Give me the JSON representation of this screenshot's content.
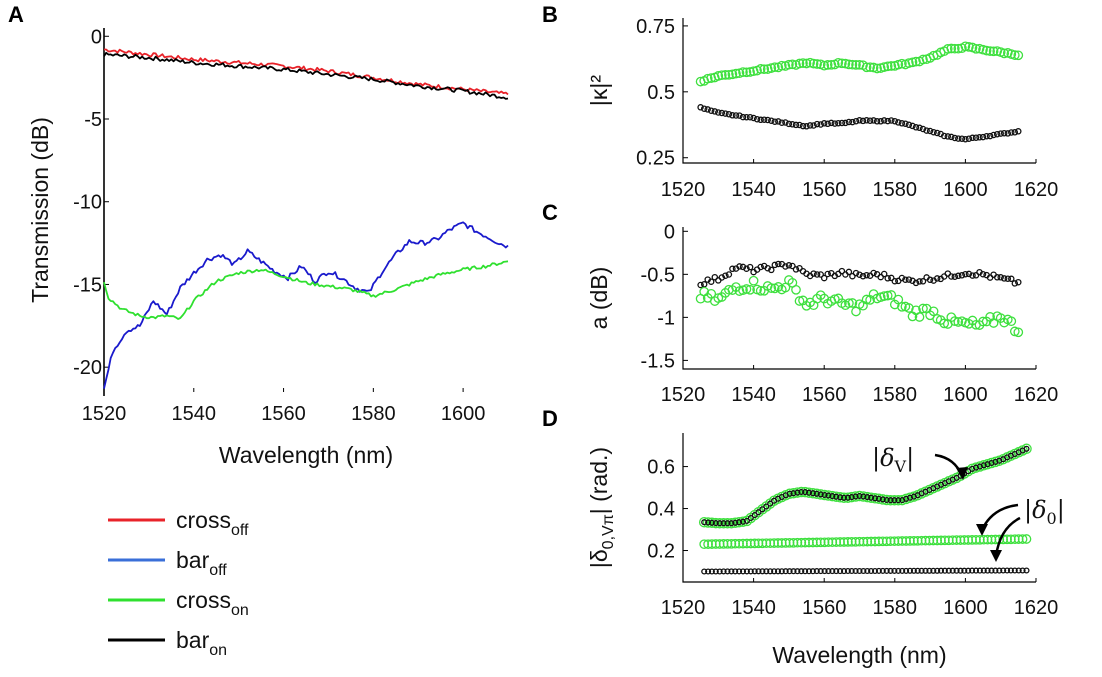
{
  "panels": {
    "A": "A",
    "B": "B",
    "C": "C",
    "D": "D"
  },
  "legend": {
    "items": [
      {
        "name": "cross",
        "sub": "off",
        "color": "#e8232a"
      },
      {
        "name": "bar",
        "sub": "off",
        "color": "#3a6fd8"
      },
      {
        "name": "cross",
        "sub": "on",
        "color": "#2fe02f"
      },
      {
        "name": "bar",
        "sub": "on",
        "color": "#000000"
      }
    ]
  },
  "annotations": {
    "delta_v": {
      "sym": "δ",
      "sub": "V"
    },
    "delta_0": {
      "sym": "δ",
      "sub": "0"
    }
  },
  "chart_data": [
    {
      "id": "A",
      "type": "line",
      "xlabel": "Wavelength (nm)",
      "ylabel": "Transmission (dB)",
      "xlim": [
        1520,
        1610
      ],
      "ylim": [
        -21.5,
        0.5
      ],
      "xticks": [
        1520,
        1540,
        1560,
        1580,
        1600
      ],
      "yticks": [
        0,
        -5,
        -10,
        -15,
        -20
      ],
      "series": [
        {
          "name": "cross_off",
          "color": "#e8232a",
          "noise": 0.12,
          "x": [
            1520,
            1530,
            1540,
            1550,
            1560,
            1570,
            1580,
            1590,
            1600,
            1610
          ],
          "y": [
            -0.8,
            -1.1,
            -1.4,
            -1.6,
            -1.8,
            -2.1,
            -2.5,
            -2.9,
            -3.2,
            -3.5
          ]
        },
        {
          "name": "bar_on",
          "color": "#000000",
          "noise": 0.12,
          "x": [
            1520,
            1530,
            1540,
            1550,
            1560,
            1570,
            1580,
            1590,
            1600,
            1610
          ],
          "y": [
            -1.1,
            -1.3,
            -1.6,
            -1.8,
            -2.0,
            -2.3,
            -2.6,
            -3.0,
            -3.3,
            -3.7
          ]
        },
        {
          "name": "bar_off",
          "color": "#1a1acc",
          "noise": 0.15,
          "x": [
            1520,
            1522,
            1525,
            1528,
            1531,
            1534,
            1537,
            1540,
            1543,
            1546,
            1549,
            1552,
            1555,
            1558,
            1561,
            1564,
            1567,
            1570,
            1573,
            1576,
            1579,
            1582,
            1585,
            1588,
            1591,
            1594,
            1597,
            1600,
            1603,
            1606,
            1608,
            1610
          ],
          "y": [
            -21.3,
            -19.0,
            -17.8,
            -17.5,
            -16.0,
            -16.8,
            -15.2,
            -14.3,
            -13.5,
            -13.2,
            -13.8,
            -13.0,
            -13.6,
            -14.2,
            -14.6,
            -13.9,
            -14.8,
            -14.2,
            -14.6,
            -15.2,
            -15.5,
            -14.2,
            -13.2,
            -12.4,
            -12.5,
            -12.3,
            -11.7,
            -11.3,
            -11.8,
            -12.2,
            -12.5,
            -12.7
          ]
        },
        {
          "name": "cross_on",
          "color": "#2fe02f",
          "noise": 0.1,
          "x": [
            1520,
            1521,
            1524,
            1528,
            1531,
            1534,
            1537,
            1540,
            1545,
            1550,
            1555,
            1560,
            1565,
            1570,
            1575,
            1580,
            1585,
            1590,
            1595,
            1600,
            1605,
            1610
          ],
          "y": [
            -14.8,
            -15.8,
            -16.5,
            -16.9,
            -17.0,
            -16.9,
            -17.1,
            -16.0,
            -14.8,
            -14.3,
            -14.1,
            -14.5,
            -14.9,
            -15.1,
            -15.3,
            -15.7,
            -15.3,
            -14.8,
            -14.4,
            -14.1,
            -13.9,
            -13.6
          ]
        }
      ]
    },
    {
      "id": "B",
      "type": "scatter",
      "ylabel": "|κ|²",
      "xlim": [
        1520,
        1620
      ],
      "ylim": [
        0.23,
        0.78
      ],
      "xticks": [
        1520,
        1540,
        1560,
        1580,
        1600,
        1620
      ],
      "yticks": [
        0.25,
        0.5,
        0.75
      ],
      "ytick_labels": [
        "0.25",
        "0.5",
        "0.75"
      ],
      "series": [
        {
          "name": "green",
          "color": "#3ee03e",
          "r": 4.2,
          "noise": 0.003,
          "x": [
            1525,
            1530,
            1535,
            1540,
            1545,
            1550,
            1555,
            1560,
            1565,
            1570,
            1575,
            1580,
            1585,
            1590,
            1595,
            1600,
            1605,
            1610,
            1615
          ],
          "y": [
            0.54,
            0.56,
            0.57,
            0.58,
            0.59,
            0.6,
            0.61,
            0.6,
            0.61,
            0.6,
            0.59,
            0.6,
            0.61,
            0.63,
            0.66,
            0.67,
            0.66,
            0.65,
            0.64
          ]
        },
        {
          "name": "black",
          "color": "#111111",
          "r": 2.6,
          "noise": 0.002,
          "x": [
            1525,
            1530,
            1535,
            1540,
            1545,
            1550,
            1555,
            1560,
            1565,
            1570,
            1575,
            1580,
            1585,
            1590,
            1595,
            1600,
            1605,
            1610,
            1615
          ],
          "y": [
            0.44,
            0.42,
            0.41,
            0.4,
            0.39,
            0.38,
            0.37,
            0.38,
            0.38,
            0.39,
            0.39,
            0.39,
            0.37,
            0.35,
            0.33,
            0.32,
            0.33,
            0.34,
            0.35
          ]
        }
      ]
    },
    {
      "id": "C",
      "type": "scatter",
      "ylabel": "a (dB)",
      "xlim": [
        1520,
        1620
      ],
      "ylim": [
        -1.6,
        0.05
      ],
      "xticks": [
        1520,
        1540,
        1560,
        1580,
        1600,
        1620
      ],
      "yticks": [
        0,
        -0.5,
        -1,
        -1.5
      ],
      "ytick_labels": [
        "0",
        "-0.5",
        "-1",
        "-1.5"
      ],
      "series": [
        {
          "name": "black",
          "color": "#111111",
          "r": 2.6,
          "noise": 0.03,
          "x": [
            1525,
            1530,
            1535,
            1540,
            1545,
            1550,
            1555,
            1560,
            1565,
            1570,
            1575,
            1580,
            1585,
            1590,
            1595,
            1600,
            1605,
            1610,
            1615
          ],
          "y": [
            -0.6,
            -0.55,
            -0.42,
            -0.45,
            -0.42,
            -0.38,
            -0.5,
            -0.52,
            -0.48,
            -0.52,
            -0.5,
            -0.55,
            -0.58,
            -0.55,
            -0.52,
            -0.48,
            -0.5,
            -0.55,
            -0.6
          ]
        },
        {
          "name": "green",
          "color": "#3ee03e",
          "r": 4.2,
          "noise": 0.06,
          "x": [
            1525,
            1530,
            1535,
            1540,
            1545,
            1550,
            1555,
            1560,
            1565,
            1570,
            1575,
            1580,
            1585,
            1590,
            1595,
            1600,
            1605,
            1610,
            1615
          ],
          "y": [
            -0.75,
            -0.8,
            -0.65,
            -0.62,
            -0.68,
            -0.6,
            -0.85,
            -0.78,
            -0.85,
            -0.88,
            -0.75,
            -0.8,
            -0.95,
            -0.92,
            -1.05,
            -1.08,
            -1.1,
            -0.98,
            -1.15
          ]
        }
      ]
    },
    {
      "id": "D",
      "type": "scatter",
      "xlabel": "Wavelength (nm)",
      "ylabel": "|δ0,Vπ| (rad.)",
      "xlim": [
        1520,
        1620
      ],
      "ylim": [
        0.05,
        0.76
      ],
      "xticks": [
        1520,
        1540,
        1560,
        1580,
        1600,
        1620
      ],
      "yticks": [
        0.2,
        0.4,
        0.6
      ],
      "ytick_labels": [
        "0.2",
        "0.4",
        "0.6"
      ],
      "series": [
        {
          "name": "delta_V_green",
          "color": "#3ee03e",
          "r": 4.6,
          "noise": 0.0,
          "x": [
            1526,
            1530,
            1534,
            1538,
            1542,
            1546,
            1550,
            1554,
            1558,
            1562,
            1566,
            1570,
            1574,
            1578,
            1582,
            1586,
            1590,
            1594,
            1598,
            1602,
            1606,
            1610,
            1614,
            1618
          ],
          "y": [
            0.335,
            0.33,
            0.33,
            0.34,
            0.39,
            0.44,
            0.47,
            0.48,
            0.47,
            0.46,
            0.45,
            0.46,
            0.45,
            0.44,
            0.44,
            0.46,
            0.49,
            0.52,
            0.55,
            0.59,
            0.61,
            0.63,
            0.66,
            0.69
          ]
        },
        {
          "name": "delta_V_black",
          "color": "#111111",
          "r": 2.4,
          "noise": 0.0,
          "x": [
            1526,
            1530,
            1534,
            1538,
            1542,
            1546,
            1550,
            1554,
            1558,
            1562,
            1566,
            1570,
            1574,
            1578,
            1582,
            1586,
            1590,
            1594,
            1598,
            1602,
            1606,
            1610,
            1614,
            1618
          ],
          "y": [
            0.335,
            0.33,
            0.33,
            0.34,
            0.39,
            0.44,
            0.47,
            0.48,
            0.47,
            0.46,
            0.45,
            0.46,
            0.45,
            0.44,
            0.44,
            0.46,
            0.49,
            0.52,
            0.55,
            0.59,
            0.61,
            0.63,
            0.66,
            0.69
          ]
        },
        {
          "name": "delta_0_green",
          "color": "#3ee03e",
          "r": 4.2,
          "noise": 0.0,
          "x": [
            1526,
            1618
          ],
          "y": [
            0.23,
            0.255
          ]
        },
        {
          "name": "delta_0_black",
          "color": "#111111",
          "r": 2.4,
          "noise": 0.0,
          "x": [
            1526,
            1618
          ],
          "y": [
            0.1,
            0.105
          ]
        }
      ]
    }
  ]
}
